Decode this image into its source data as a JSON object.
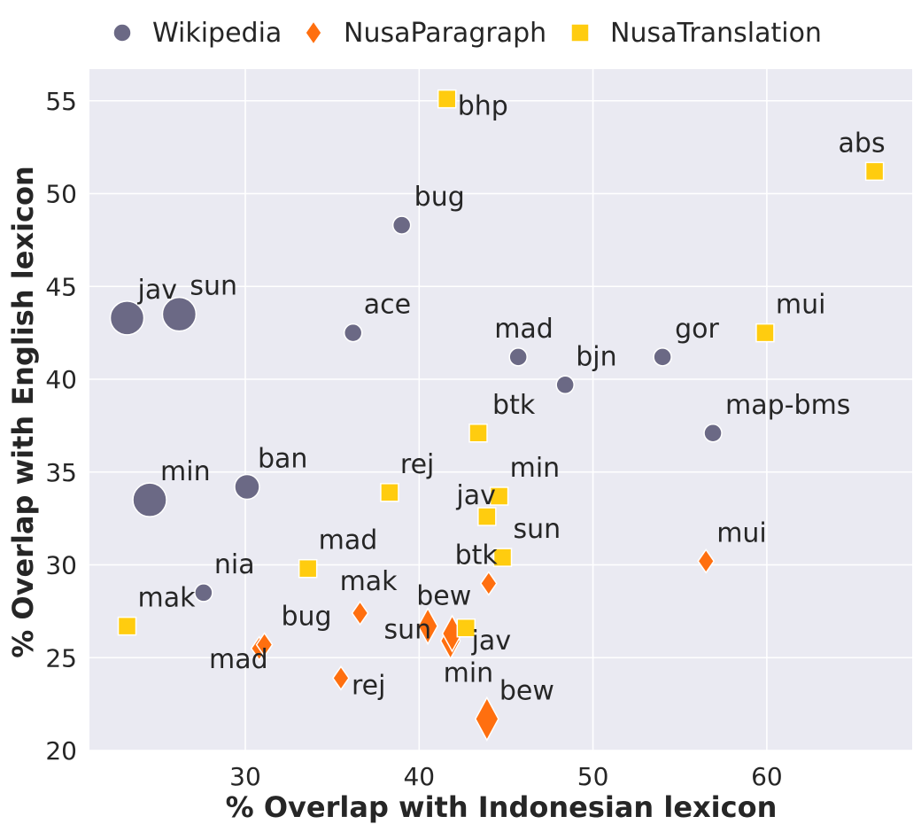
{
  "chart_data": {
    "type": "scatter",
    "xlabel": "% Overlap with Indonesian lexicon",
    "ylabel": "% Overlap with English lexicon",
    "xlim": [
      21.0,
      68.1
    ],
    "ylim": [
      20,
      56.6
    ],
    "xticks": [
      30,
      40,
      50,
      60
    ],
    "yticks": [
      20,
      25,
      30,
      35,
      40,
      45,
      50,
      55
    ],
    "grid": true,
    "legend_position": "top",
    "series": [
      {
        "name": "Wikipedia",
        "marker": "circle",
        "color": "#6b6985",
        "points": [
          {
            "label": "jav",
            "x": 23.2,
            "y": 43.3,
            "size": 3
          },
          {
            "label": "sun",
            "x": 26.2,
            "y": 43.5,
            "size": 3
          },
          {
            "label": "min",
            "x": 24.5,
            "y": 33.5,
            "size": 3
          },
          {
            "label": "ban",
            "x": 30.1,
            "y": 34.2,
            "size": 2
          },
          {
            "label": "nia",
            "x": 27.6,
            "y": 28.5,
            "size": 1
          },
          {
            "label": "ace",
            "x": 36.2,
            "y": 42.5,
            "size": 1
          },
          {
            "label": "bug",
            "x": 39.0,
            "y": 48.3,
            "size": 1
          },
          {
            "label": "mad",
            "x": 45.7,
            "y": 41.2,
            "size": 1
          },
          {
            "label": "bjn",
            "x": 48.4,
            "y": 39.7,
            "size": 1
          },
          {
            "label": "gor",
            "x": 54.0,
            "y": 41.2,
            "size": 1
          },
          {
            "label": "map-bms",
            "x": 56.9,
            "y": 37.1,
            "size": 1
          }
        ]
      },
      {
        "name": "NusaParagraph",
        "marker": "diamond",
        "color": "#ff6f0f",
        "points": [
          {
            "label": "mad",
            "x": 30.8,
            "y": 25.5,
            "size": 1
          },
          {
            "label": "bug",
            "x": 31.1,
            "y": 25.7,
            "size": 1
          },
          {
            "label": "mak",
            "x": 36.6,
            "y": 27.4,
            "size": 1
          },
          {
            "label": "rej",
            "x": 35.5,
            "y": 23.9,
            "size": 1
          },
          {
            "label": "sun",
            "x": 40.5,
            "y": 26.7,
            "size": 2
          },
          {
            "label": "min",
            "x": 41.8,
            "y": 25.9,
            "size": 2
          },
          {
            "label": "jav",
            "x": 41.9,
            "y": 26.3,
            "size": 2
          },
          {
            "label": "bew",
            "x": 43.9,
            "y": 21.7,
            "size": 3
          },
          {
            "label": "btk",
            "x": 44.0,
            "y": 29.0,
            "size": 1
          },
          {
            "label": "mui",
            "x": 56.5,
            "y": 30.2,
            "size": 1
          }
        ]
      },
      {
        "name": "NusaTranslation",
        "marker": "square",
        "color": "#ffcc0f",
        "points": [
          {
            "label": "mak",
            "x": 23.2,
            "y": 26.7,
            "size": 1
          },
          {
            "label": "mad",
            "x": 33.6,
            "y": 29.8,
            "size": 1
          },
          {
            "label": "rej",
            "x": 38.3,
            "y": 33.9,
            "size": 1
          },
          {
            "label": "bhp",
            "x": 41.6,
            "y": 55.1,
            "size": 1
          },
          {
            "label": "btk",
            "x": 43.4,
            "y": 37.1,
            "size": 1
          },
          {
            "label": "jav",
            "x": 43.9,
            "y": 32.6,
            "size": 1
          },
          {
            "label": "min",
            "x": 44.6,
            "y": 33.7,
            "size": 1
          },
          {
            "label": "sun",
            "x": 44.8,
            "y": 30.4,
            "size": 1
          },
          {
            "label": "bew",
            "x": 42.7,
            "y": 26.6,
            "size": 1
          },
          {
            "label": "mui",
            "x": 59.9,
            "y": 42.5,
            "size": 1
          },
          {
            "label": "abs",
            "x": 66.2,
            "y": 51.2,
            "size": 1
          }
        ]
      }
    ]
  }
}
